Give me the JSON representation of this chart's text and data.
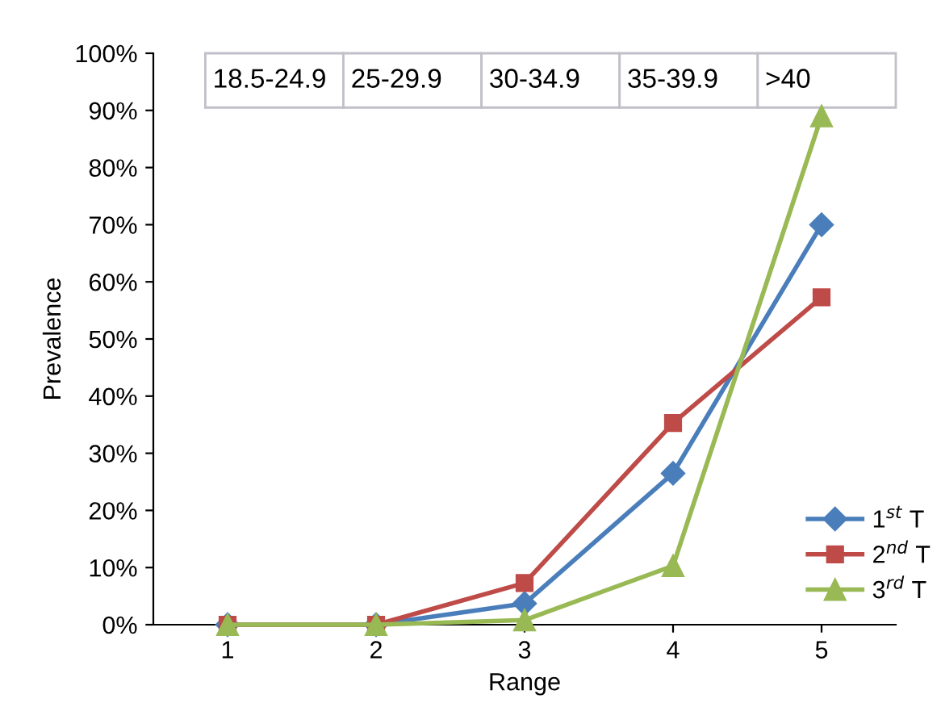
{
  "chart_data": {
    "type": "line",
    "xlabel": "Range",
    "ylabel": "Prevalence",
    "x": [
      1,
      2,
      3,
      4,
      5
    ],
    "series": [
      {
        "name": "1$^{st}$ T",
        "color": "#4a7ebb",
        "values": [
          0,
          0,
          3.7,
          26.5,
          70
        ],
        "marker": "diamond"
      },
      {
        "name": "2$^{nd}$ T",
        "color": "#be4b48",
        "values": [
          0,
          0,
          7.3,
          35.3,
          57.3
        ],
        "marker": "square"
      },
      {
        "name": "3$^{rd}$ T",
        "color": "#98b954",
        "values": [
          0,
          0,
          0.8,
          10.3,
          89
        ],
        "marker": "triangle"
      }
    ],
    "xlim": [
      0.5,
      5.5
    ],
    "xticks": [
      1,
      2,
      3,
      4,
      5
    ],
    "ylim": [
      0,
      100
    ],
    "yticks": [
      {
        "value": 0,
        "label": "0%"
      },
      {
        "value": 10,
        "label": "10%"
      },
      {
        "value": 20,
        "label": "20%"
      },
      {
        "value": 30,
        "label": "30%"
      },
      {
        "value": 40,
        "label": "40%"
      },
      {
        "value": 50,
        "label": "50%"
      },
      {
        "value": 60,
        "label": "60%"
      },
      {
        "value": 70,
        "label": "70%"
      },
      {
        "value": 80,
        "label": "80%"
      },
      {
        "value": 90,
        "label": "90%"
      },
      {
        "value": 100,
        "label": "100%"
      }
    ],
    "annotations": [
      "18.5-24.9",
      "25-29.9",
      "30-34.9",
      "35-39.9",
      ">40"
    ],
    "grid": false,
    "legend": "right",
    "line_style": "solid"
  }
}
